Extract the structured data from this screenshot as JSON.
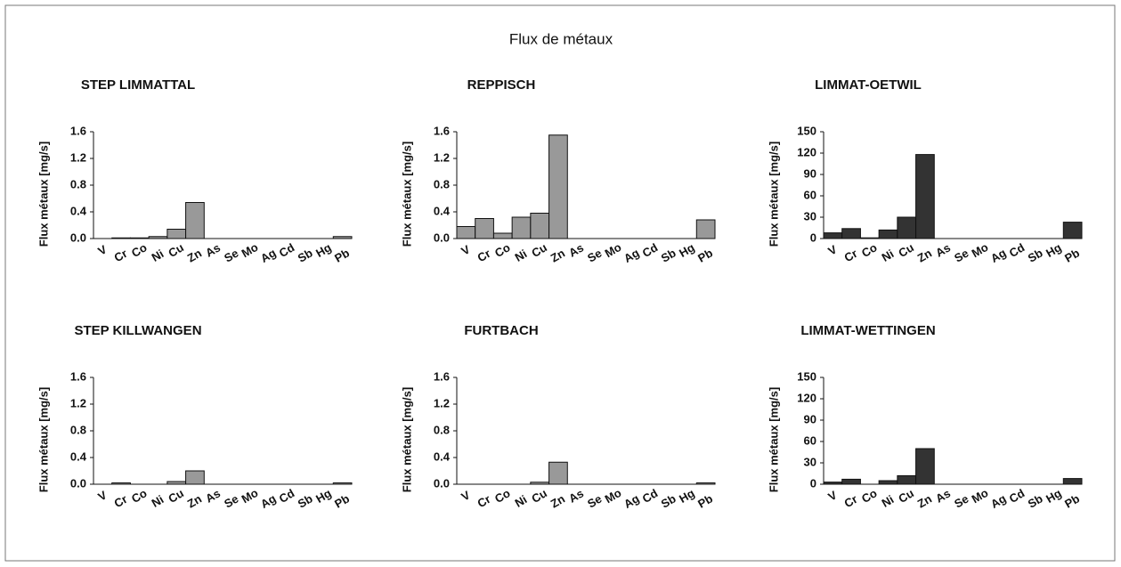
{
  "title": "Flux de métaux",
  "chart_data": [
    {
      "type": "bar",
      "title": "STEP LIMMATTAL",
      "ylabel": "Flux métaux [mg/s]",
      "categories": [
        "V",
        "Cr",
        "Co",
        "Ni",
        "Cu",
        "Zn",
        "As",
        "Se",
        "Mo",
        "Ag",
        "Cd",
        "Sb",
        "Hg",
        "Pb"
      ],
      "values": [
        0,
        0.01,
        0.01,
        0.03,
        0.14,
        0.54,
        0,
        0,
        0,
        0,
        0,
        0,
        0,
        0.03
      ],
      "color": "#999999",
      "ylim": [
        0,
        1.6
      ],
      "yticks": [
        {
          "value": 0,
          "label": "0.0"
        },
        0.4,
        0.8,
        1.2,
        1.6
      ]
    },
    {
      "type": "bar",
      "title": "REPPISCH",
      "ylabel": "Flux métaux [mg/s]",
      "categories": [
        "V",
        "Cr",
        "Co",
        "Ni",
        "Cu",
        "Zn",
        "As",
        "Se",
        "Mo",
        "Ag",
        "Cd",
        "Sb",
        "Hg",
        "Pb"
      ],
      "values": [
        0.18,
        0.3,
        0.08,
        0.32,
        0.38,
        1.55,
        0,
        0,
        0,
        0,
        0,
        0,
        0,
        0.28
      ],
      "color": "#999999",
      "ylim": [
        0,
        1.6
      ],
      "yticks": [
        {
          "value": 0,
          "label": "0.0"
        },
        0.4,
        0.8,
        1.2,
        1.6
      ]
    },
    {
      "type": "bar",
      "title": "LIMMAT-OETWIL",
      "ylabel": "Flux métaux [mg/s]",
      "categories": [
        "V",
        "Cr",
        "Co",
        "Ni",
        "Cu",
        "Zn",
        "As",
        "Se",
        "Mo",
        "Ag",
        "Cd",
        "Sb",
        "Hg",
        "Pb"
      ],
      "values": [
        8,
        14,
        1,
        12,
        30,
        118,
        0,
        0,
        0,
        0,
        0,
        0,
        0,
        23
      ],
      "color": "#333333",
      "ylim": [
        0,
        150
      ],
      "yticks": [
        0,
        30,
        60,
        90,
        120,
        150
      ]
    },
    {
      "type": "bar",
      "title": "STEP KILLWANGEN",
      "ylabel": "Flux métaux [mg/s]",
      "categories": [
        "V",
        "Cr",
        "Co",
        "Ni",
        "Cu",
        "Zn",
        "As",
        "Se",
        "Mo",
        "Ag",
        "Cd",
        "Sb",
        "Hg",
        "Pb"
      ],
      "values": [
        0,
        0.02,
        0,
        0,
        0.04,
        0.2,
        0,
        0,
        0,
        0,
        0,
        0,
        0,
        0.02
      ],
      "color": "#999999",
      "ylim": [
        0,
        1.6
      ],
      "yticks": [
        {
          "value": 0,
          "label": "0.0"
        },
        0.4,
        0.8,
        1.2,
        1.6
      ]
    },
    {
      "type": "bar",
      "title": "FURTBACH",
      "ylabel": "Flux métaux [mg/s]",
      "categories": [
        "V",
        "Cr",
        "Co",
        "Ni",
        "Cu",
        "Zn",
        "As",
        "Se",
        "Mo",
        "Ag",
        "Cd",
        "Sb",
        "Hg",
        "Pb"
      ],
      "values": [
        0,
        0,
        0,
        0,
        0.03,
        0.33,
        0,
        0,
        0,
        0,
        0,
        0,
        0,
        0.02
      ],
      "color": "#999999",
      "ylim": [
        0,
        1.6
      ],
      "yticks": [
        {
          "value": 0,
          "label": "0.0"
        },
        0.4,
        0.8,
        1.2,
        1.6
      ]
    },
    {
      "type": "bar",
      "title": "LIMMAT-WETTINGEN",
      "ylabel": "Flux métaux [mg/s]",
      "categories": [
        "V",
        "Cr",
        "Co",
        "Ni",
        "Cu",
        "Zn",
        "As",
        "Se",
        "Mo",
        "Ag",
        "Cd",
        "Sb",
        "Hg",
        "Pb"
      ],
      "values": [
        3,
        7,
        0,
        5,
        12,
        50,
        0,
        0,
        0,
        0,
        0,
        0,
        0,
        8
      ],
      "color": "#333333",
      "ylim": [
        0,
        150
      ],
      "yticks": [
        0,
        30,
        60,
        90,
        120,
        150
      ]
    }
  ]
}
